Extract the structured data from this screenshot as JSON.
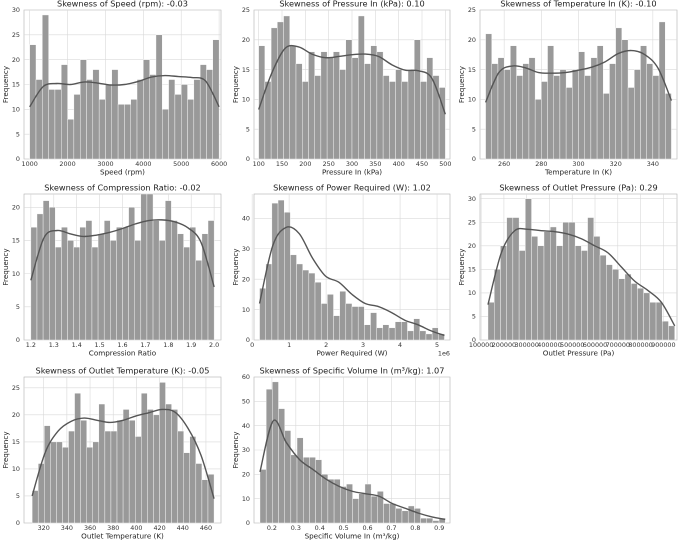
{
  "chart_data": [
    {
      "type": "histogram",
      "title": "Skewness of Speed (rpm): -0.03",
      "xlabel": "Speed (rpm)",
      "ylabel": "Frequency",
      "xlim": [
        850,
        6050
      ],
      "ylim": [
        0,
        30
      ],
      "xticks": [
        1000,
        2000,
        3000,
        4000,
        5000,
        6000
      ],
      "xtick_labels": [
        "1000",
        "2000",
        "3000",
        "4000",
        "5000",
        "6000"
      ],
      "yticks": [
        0,
        5,
        10,
        15,
        20,
        25,
        30
      ],
      "ytick_labels": [
        "0",
        "5",
        "10",
        "15",
        "20",
        "25",
        "30"
      ],
      "bins": [
        1000,
        6000
      ],
      "counts": [
        23,
        16,
        29,
        14,
        14,
        19,
        8,
        13,
        20,
        16,
        18,
        12,
        15,
        18,
        11,
        11,
        12,
        16,
        20,
        17,
        25,
        10,
        16,
        13,
        15,
        12,
        16,
        19,
        18,
        24
      ],
      "kde": [
        10.5,
        14.6,
        15.2,
        15.0,
        15.5,
        15.3,
        14.9,
        15.0,
        15.6,
        16.5,
        16.8,
        16.6,
        16.4,
        15.7,
        10.5
      ]
    },
    {
      "type": "histogram",
      "title": "Skewness of Pressure In (kPa): 0.10",
      "xlabel": "Pressure In (kPa)",
      "ylabel": "Frequency",
      "xlim": [
        90,
        510
      ],
      "ylim": [
        0,
        25
      ],
      "xticks": [
        100,
        150,
        200,
        250,
        300,
        350,
        400,
        450,
        500
      ],
      "xtick_labels": [
        "100",
        "150",
        "200",
        "250",
        "300",
        "350",
        "400",
        "450",
        "500"
      ],
      "yticks": [
        0,
        5,
        10,
        15,
        20,
        25
      ],
      "ytick_labels": [
        "0",
        "5",
        "10",
        "15",
        "20",
        "25"
      ],
      "bins": [
        100,
        500
      ],
      "counts": [
        19,
        13,
        22,
        23,
        24,
        19,
        16,
        13,
        18,
        14,
        18,
        17,
        18,
        15,
        20,
        17,
        24,
        16,
        19,
        18,
        14,
        13,
        15,
        13,
        15,
        20,
        13,
        17,
        14,
        12
      ],
      "kde": [
        8.3,
        14.5,
        18.6,
        18.8,
        17.6,
        17.0,
        17.2,
        17.5,
        17.6,
        17.2,
        15.8,
        14.9,
        14.8,
        13.5,
        7.5
      ]
    },
    {
      "type": "histogram",
      "title": "Skewness of Temperature In (K): -0.10",
      "xlabel": "Temperature In (K)",
      "ylabel": "Frequency",
      "xlim": [
        247,
        353
      ],
      "ylim": [
        0,
        25
      ],
      "xticks": [
        260,
        280,
        300,
        320,
        340
      ],
      "xtick_labels": [
        "260",
        "280",
        "300",
        "320",
        "340"
      ],
      "yticks": [
        0,
        5,
        10,
        15,
        20,
        25
      ],
      "ytick_labels": [
        "0",
        "5",
        "10",
        "15",
        "20",
        "25"
      ],
      "bins": [
        250,
        350
      ],
      "counts": [
        21,
        16,
        17,
        15,
        19,
        14,
        16,
        17,
        10,
        13,
        19,
        14,
        15,
        12,
        15,
        18,
        14,
        17,
        19,
        11,
        16,
        22,
        20,
        12,
        15,
        19,
        16,
        14,
        23,
        11
      ],
      "kde": [
        9.5,
        14.5,
        15.6,
        15.3,
        14.5,
        14.4,
        14.5,
        14.9,
        15.4,
        16.3,
        17.7,
        18.2,
        17.5,
        15.2,
        9.8
      ]
    },
    {
      "type": "histogram",
      "title": "Skewness of Compression Ratio: -0.02",
      "xlabel": "Compression Ratio",
      "ylabel": "Frequency",
      "xlim": [
        1.17,
        2.03
      ],
      "ylim": [
        0,
        22
      ],
      "xticks": [
        1.2,
        1.3,
        1.4,
        1.5,
        1.6,
        1.7,
        1.8,
        1.9,
        2.0
      ],
      "xtick_labels": [
        "1.2",
        "1.3",
        "1.4",
        "1.5",
        "1.6",
        "1.7",
        "1.8",
        "1.9",
        "2.0"
      ],
      "yticks": [
        0,
        5,
        10,
        15,
        20
      ],
      "ytick_labels": [
        "0",
        "5",
        "10",
        "15",
        "20"
      ],
      "bins": [
        1.2,
        2.0
      ],
      "counts": [
        17,
        19,
        21,
        20,
        14,
        17,
        15,
        14,
        17,
        18,
        14,
        16,
        18,
        15,
        17,
        17,
        20,
        15,
        22,
        22,
        18,
        15,
        21,
        18,
        16,
        14,
        17,
        12,
        16,
        18
      ],
      "kde": [
        9.0,
        15.4,
        16.5,
        16.0,
        15.6,
        15.8,
        16.2,
        16.8,
        17.5,
        18.0,
        18.1,
        17.8,
        16.9,
        14.7,
        8.0
      ]
    },
    {
      "type": "histogram",
      "title": "Skewness of Power Required (W): 1.02",
      "xlabel": "Power Required (W)",
      "ylabel": "Frequency",
      "axis_multiplier": "1e6",
      "xlim": [
        0.05,
        5.35
      ],
      "ylim": [
        0,
        48
      ],
      "xticks": [
        0,
        1,
        2,
        3,
        4,
        5
      ],
      "xtick_labels": [
        "0",
        "1",
        "2",
        "3",
        "4",
        "5"
      ],
      "yticks": [
        0,
        10,
        20,
        30,
        40
      ],
      "ytick_labels": [
        "0",
        "10",
        "20",
        "30",
        "40"
      ],
      "bins": [
        0.2,
        5.2
      ],
      "counts": [
        17,
        25,
        45,
        46,
        42,
        28,
        25,
        23,
        22,
        19,
        12,
        15,
        8,
        16,
        12,
        11,
        11,
        5,
        9,
        4,
        5,
        4,
        6,
        6,
        3,
        7,
        3,
        2,
        4,
        2
      ],
      "kde": [
        12,
        31,
        37,
        35,
        27,
        21,
        19,
        15,
        12,
        11,
        9,
        6.5,
        5,
        3,
        1.5
      ]
    },
    {
      "type": "histogram",
      "title": "Skewness of Outlet Pressure (Pa): 0.29",
      "xlabel": "Outlet Pressure (Pa)",
      "ylabel": "Frequency",
      "xlim": [
        95000,
        960000
      ],
      "ylim": [
        0,
        31
      ],
      "xticks": [
        100000,
        200000,
        300000,
        400000,
        500000,
        600000,
        700000,
        800000,
        900000
      ],
      "xtick_labels": [
        "100000",
        "200000",
        "300000",
        "400000",
        "500000",
        "600000",
        "700000",
        "800000",
        "900000"
      ],
      "yticks": [
        0,
        5,
        10,
        15,
        20,
        25,
        30
      ],
      "ytick_labels": [
        "0",
        "5",
        "10",
        "15",
        "20",
        "25",
        "30"
      ],
      "bins": [
        130000,
        950000
      ],
      "counts": [
        8,
        15,
        20,
        26,
        26,
        19,
        30,
        22,
        20,
        23,
        24,
        20,
        25,
        25,
        20,
        19,
        26,
        22,
        18,
        16,
        15,
        13,
        14,
        12,
        11,
        10,
        8,
        8,
        4,
        3
      ],
      "kde": [
        7.5,
        18.5,
        23.2,
        23.5,
        23.2,
        23.0,
        22.5,
        21.5,
        20.0,
        18.5,
        15.5,
        12.5,
        10.5,
        8.0,
        3.0
      ]
    },
    {
      "type": "histogram",
      "title": "Skewness of Outlet Temperature (K): -0.05",
      "xlabel": "Outlet Temperature (K)",
      "ylabel": "Frequency",
      "xlim": [
        303,
        473
      ],
      "ylim": [
        0,
        27
      ],
      "xticks": [
        320,
        340,
        360,
        380,
        400,
        420,
        440,
        460
      ],
      "xtick_labels": [
        "320",
        "340",
        "360",
        "380",
        "400",
        "420",
        "440",
        "460"
      ],
      "yticks": [
        0,
        5,
        10,
        15,
        20,
        25
      ],
      "ytick_labels": [
        "0",
        "5",
        "10",
        "15",
        "20",
        "25"
      ],
      "bins": [
        310,
        467
      ],
      "counts": [
        6,
        11,
        18,
        15,
        15,
        14,
        17,
        24,
        19,
        14,
        15,
        22,
        17,
        17,
        19,
        21,
        19,
        16,
        24,
        21,
        20,
        26,
        22,
        21,
        17,
        13,
        16,
        11,
        8,
        9
      ],
      "kde": [
        5,
        13,
        17,
        18.8,
        19.4,
        19.0,
        18.6,
        19.0,
        19.8,
        20.4,
        21.0,
        20.5,
        17.5,
        12.5,
        4.5
      ]
    },
    {
      "type": "histogram",
      "title": "Skewness of Specific Volume In (m³/kg): 1.07",
      "xlabel": "Specific Volume In (m³/kg)",
      "ylabel": "Frequency",
      "xlim": [
        0.125,
        0.945
      ],
      "ylim": [
        0,
        60
      ],
      "xticks": [
        0.2,
        0.3,
        0.4,
        0.5,
        0.6,
        0.7,
        0.8,
        0.9
      ],
      "xtick_labels": [
        "0.2",
        "0.3",
        "0.4",
        "0.5",
        "0.6",
        "0.7",
        "0.8",
        "0.9"
      ],
      "yticks": [
        0,
        10,
        20,
        30,
        40,
        50,
        60
      ],
      "ytick_labels": [
        "0",
        "10",
        "20",
        "30",
        "40",
        "50",
        "60"
      ],
      "bins": [
        0.15,
        0.925
      ],
      "counts": [
        22,
        55,
        58,
        47,
        38,
        28,
        35,
        27,
        27,
        26,
        20,
        18,
        18,
        15,
        16,
        10,
        12,
        16,
        11,
        13,
        8,
        8,
        6,
        5,
        7,
        6,
        2,
        2,
        1,
        2
      ],
      "kde": [
        21,
        42,
        33,
        26,
        22,
        18,
        15,
        13,
        12,
        11,
        8,
        6,
        4,
        2.5,
        1.5
      ]
    }
  ]
}
